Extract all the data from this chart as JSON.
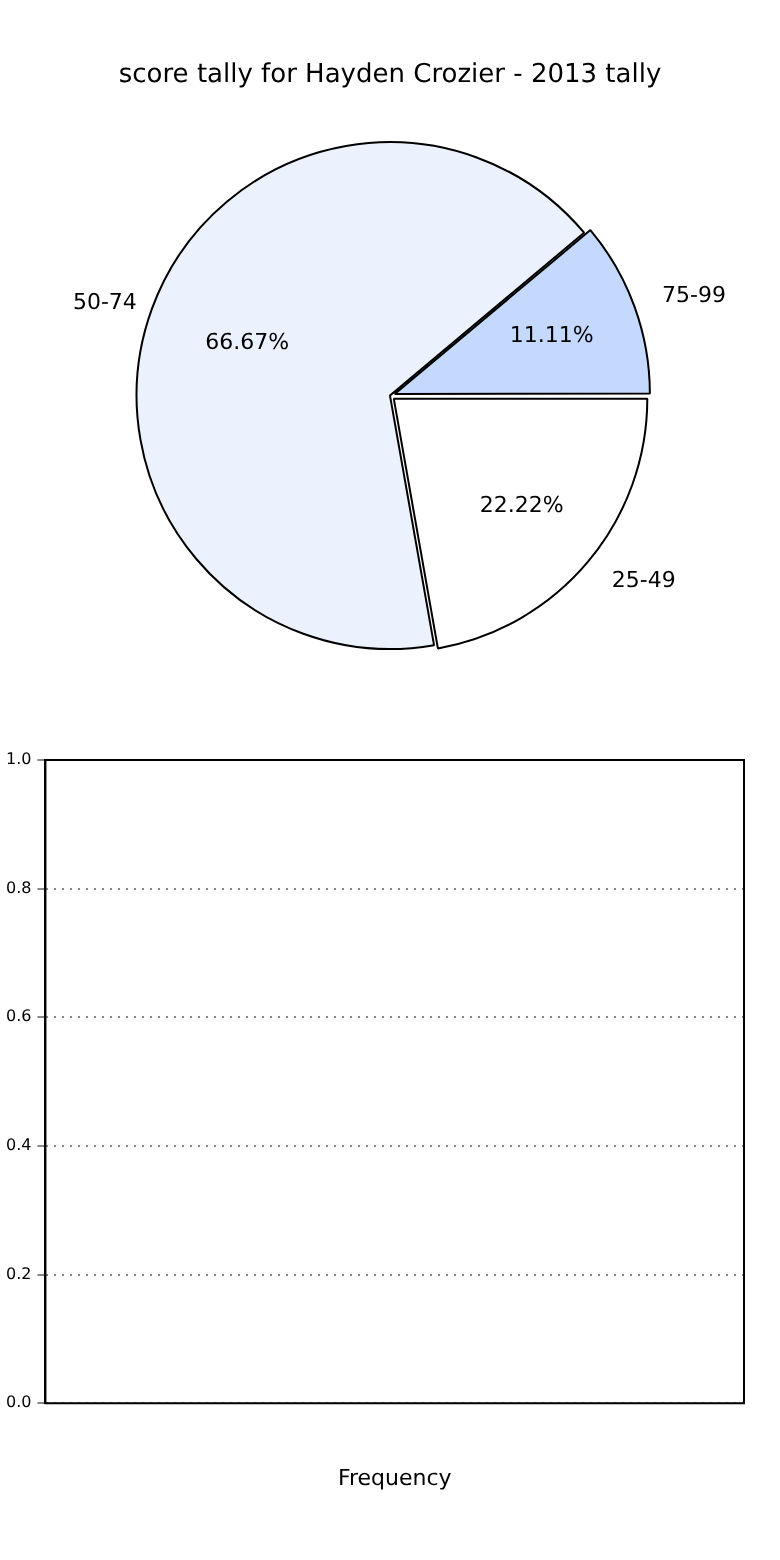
{
  "chart_data": [
    {
      "type": "pie",
      "title": "score tally for Hayden Crozier - 2013 tally",
      "categories": [
        "25-49",
        "50-74",
        "75-99"
      ],
      "values": [
        22.22,
        66.67,
        11.11
      ],
      "colors": [
        "#ffffff",
        "#ebf1fd",
        "#c5d9fe"
      ],
      "value_labels": [
        "22.22%",
        "66.67%",
        "11.11%"
      ]
    },
    {
      "type": "bar",
      "categories": [
        null
      ],
      "values": [
        null
      ],
      "xlabel": "Frequency",
      "ylim": [
        0,
        1
      ],
      "yticks": [
        {
          "value": 0,
          "label": "0.0"
        },
        {
          "value": 0.2,
          "label": "0.2"
        },
        {
          "value": 0.4,
          "label": "0.4"
        },
        {
          "value": 0.6,
          "label": "0.6"
        },
        {
          "value": 0.8,
          "label": "0.8"
        },
        {
          "value": 1,
          "label": "1.0"
        }
      ],
      "grid": "y"
    }
  ]
}
